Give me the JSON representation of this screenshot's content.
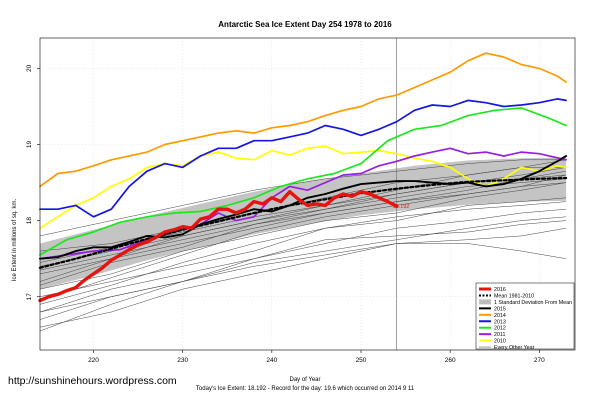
{
  "chart_data": {
    "type": "line",
    "title": "Antarctic Sea Ice Extent Day 254 1978 to 2016",
    "xlabel": "Day of Year",
    "ylabel": "Ice Extent in millions of sq. km.",
    "footer": "Today's Ice Extent: 18.192  - Record for the day: 19.6 which occurred on 2014 9 11",
    "watermark": "http://sunshinehours.wordpress.com",
    "xlim": [
      214,
      274
    ],
    "ylim": [
      16.3,
      20.4
    ],
    "xticks": [
      220,
      230,
      240,
      250,
      260,
      270
    ],
    "yticks": [
      17,
      18,
      19,
      20
    ],
    "current_day": 254,
    "grid": true,
    "legend_position": "bottom-right",
    "annotation": {
      "text": "18.192",
      "x": 254,
      "y": 18.192
    },
    "legend": [
      {
        "name": "2016",
        "color": "#e8130f"
      },
      {
        "name": "Mean 1981-2010",
        "color": "#000000"
      },
      {
        "name": "1 Standard Deviation From Mean",
        "color": "#bdbdbd"
      },
      {
        "name": "2015",
        "color": "#000000"
      },
      {
        "name": "2014",
        "color": "#ff9a00"
      },
      {
        "name": "2013",
        "color": "#1515e6"
      },
      {
        "name": "2012",
        "color": "#1ee61e"
      },
      {
        "name": "2011",
        "color": "#9a1ee0"
      },
      {
        "name": "2010",
        "color": "#ffff00"
      },
      {
        "name": "Every Other Year",
        "color": "#555555"
      }
    ],
    "mean_band": {
      "x": [
        214,
        220,
        226,
        232,
        238,
        244,
        250,
        256,
        262,
        268,
        273
      ],
      "lower": [
        17.1,
        17.28,
        17.48,
        17.65,
        17.82,
        17.95,
        18.07,
        18.15,
        18.21,
        18.25,
        18.26
      ],
      "upper": [
        17.7,
        17.88,
        18.06,
        18.22,
        18.38,
        18.52,
        18.62,
        18.72,
        18.79,
        18.82,
        18.83
      ]
    },
    "series": [
      {
        "name": "Mean 1981-2010",
        "style": "dashed",
        "x": [
          214,
          218,
          222,
          226,
          230,
          234,
          238,
          242,
          246,
          250,
          254,
          258,
          262,
          266,
          270,
          273
        ],
        "values": [
          17.38,
          17.5,
          17.63,
          17.76,
          17.88,
          17.99,
          18.1,
          18.2,
          18.28,
          18.36,
          18.42,
          18.47,
          18.51,
          18.53,
          18.55,
          18.56
        ]
      },
      {
        "name": "2010",
        "x": [
          214,
          216,
          218,
          220,
          222,
          224,
          226,
          228,
          230,
          232,
          234,
          236,
          238,
          240,
          242,
          244,
          246,
          248,
          250,
          252,
          254,
          256,
          258,
          260,
          262,
          264,
          266,
          268,
          270,
          272,
          273
        ],
        "values": [
          17.9,
          18.05,
          18.2,
          18.3,
          18.45,
          18.55,
          18.7,
          18.75,
          18.72,
          18.85,
          18.9,
          18.82,
          18.8,
          18.92,
          18.86,
          18.95,
          18.98,
          18.88,
          18.9,
          18.92,
          18.88,
          18.82,
          18.78,
          18.7,
          18.55,
          18.45,
          18.55,
          18.7,
          18.65,
          18.72,
          18.7
        ]
      },
      {
        "name": "2011",
        "x": [
          214,
          217,
          220,
          223,
          226,
          229,
          232,
          234,
          236,
          238,
          240,
          242,
          244,
          246,
          248,
          250,
          252,
          254,
          256,
          258,
          260,
          262,
          264,
          266,
          268,
          270,
          273
        ],
        "values": [
          17.5,
          17.55,
          17.6,
          17.62,
          17.75,
          17.85,
          17.95,
          18.1,
          18.0,
          18.05,
          18.3,
          18.45,
          18.4,
          18.5,
          18.6,
          18.62,
          18.72,
          18.78,
          18.85,
          18.9,
          18.95,
          18.88,
          18.9,
          18.85,
          18.9,
          18.88,
          18.8
        ]
      },
      {
        "name": "2012",
        "x": [
          214,
          217,
          220,
          223,
          226,
          229,
          232,
          235,
          238,
          241,
          244,
          247,
          250,
          253,
          256,
          259,
          262,
          265,
          268,
          271,
          273
        ],
        "values": [
          17.55,
          17.75,
          17.85,
          17.98,
          18.05,
          18.1,
          18.12,
          18.2,
          18.3,
          18.45,
          18.55,
          18.62,
          18.75,
          19.05,
          19.2,
          19.25,
          19.38,
          19.45,
          19.48,
          19.35,
          19.25
        ]
      },
      {
        "name": "2013",
        "x": [
          214,
          216,
          218,
          220,
          222,
          224,
          226,
          228,
          230,
          232,
          234,
          236,
          238,
          240,
          242,
          244,
          246,
          248,
          250,
          252,
          254,
          256,
          258,
          260,
          262,
          264,
          266,
          268,
          270,
          272,
          273
        ],
        "values": [
          18.15,
          18.15,
          18.2,
          18.05,
          18.15,
          18.45,
          18.65,
          18.75,
          18.7,
          18.85,
          18.95,
          18.95,
          19.05,
          19.05,
          19.1,
          19.15,
          19.25,
          19.2,
          19.12,
          19.2,
          19.3,
          19.45,
          19.52,
          19.5,
          19.58,
          19.55,
          19.5,
          19.52,
          19.55,
          19.6,
          19.58
        ]
      },
      {
        "name": "2014",
        "x": [
          214,
          216,
          218,
          220,
          222,
          224,
          226,
          228,
          230,
          232,
          234,
          236,
          238,
          240,
          242,
          244,
          246,
          248,
          250,
          252,
          254,
          256,
          258,
          260,
          262,
          264,
          266,
          268,
          270,
          272,
          273
        ],
        "values": [
          18.45,
          18.62,
          18.65,
          18.72,
          18.8,
          18.85,
          18.9,
          19.0,
          19.05,
          19.1,
          19.15,
          19.18,
          19.15,
          19.22,
          19.25,
          19.3,
          19.38,
          19.45,
          19.5,
          19.6,
          19.65,
          19.75,
          19.85,
          19.95,
          20.1,
          20.2,
          20.15,
          20.05,
          20.0,
          19.9,
          19.82
        ]
      },
      {
        "name": "2015",
        "x": [
          214,
          216,
          218,
          220,
          222,
          224,
          226,
          228,
          230,
          232,
          234,
          236,
          238,
          240,
          242,
          244,
          246,
          248,
          250,
          252,
          254,
          256,
          258,
          260,
          262,
          264,
          266,
          268,
          270,
          272,
          273
        ],
        "values": [
          17.5,
          17.52,
          17.6,
          17.65,
          17.65,
          17.72,
          17.8,
          17.78,
          17.82,
          17.95,
          18.02,
          18.08,
          18.15,
          18.12,
          18.2,
          18.3,
          18.35,
          18.42,
          18.48,
          18.5,
          18.52,
          18.52,
          18.5,
          18.48,
          18.5,
          18.45,
          18.48,
          18.55,
          18.65,
          18.78,
          18.85
        ]
      },
      {
        "name": "2016",
        "label": "18.192",
        "x": [
          214,
          215,
          216,
          217,
          218,
          219,
          220,
          221,
          222,
          223,
          224,
          225,
          226,
          227,
          228,
          229,
          230,
          231,
          232,
          233,
          234,
          235,
          236,
          237,
          238,
          239,
          240,
          241,
          242,
          243,
          244,
          245,
          246,
          247,
          248,
          249,
          250,
          251,
          252,
          253,
          254
        ],
        "values": [
          16.95,
          17.0,
          17.03,
          17.08,
          17.12,
          17.22,
          17.3,
          17.38,
          17.48,
          17.55,
          17.62,
          17.68,
          17.72,
          17.78,
          17.85,
          17.88,
          17.92,
          17.9,
          18.02,
          18.05,
          18.15,
          18.15,
          18.1,
          18.15,
          18.25,
          18.22,
          18.3,
          18.25,
          18.38,
          18.28,
          18.2,
          18.22,
          18.2,
          18.3,
          18.35,
          18.32,
          18.38,
          18.35,
          18.3,
          18.25,
          18.19
        ]
      }
    ],
    "other_years": [
      {
        "x": [
          214,
          222,
          230,
          238,
          246,
          254,
          262,
          268,
          273
        ],
        "values": [
          17.2,
          17.5,
          17.8,
          18.0,
          18.2,
          18.4,
          18.6,
          18.7,
          18.8
        ]
      },
      {
        "x": [
          214,
          222,
          230,
          238,
          246,
          254,
          262,
          268,
          273
        ],
        "values": [
          17.0,
          17.2,
          17.4,
          17.6,
          17.9,
          18.0,
          18.2,
          18.25,
          18.3
        ]
      },
      {
        "x": [
          214,
          222,
          230,
          238,
          246,
          254,
          262,
          268,
          273
        ],
        "values": [
          16.8,
          17.1,
          17.3,
          17.5,
          17.7,
          17.9,
          18.0,
          18.1,
          18.15
        ]
      },
      {
        "x": [
          214,
          222,
          230,
          238,
          246,
          254,
          262,
          268,
          273
        ],
        "values": [
          16.55,
          16.9,
          17.2,
          17.5,
          17.75,
          17.8,
          17.85,
          17.95,
          18.0
        ]
      },
      {
        "x": [
          214,
          222,
          230,
          238,
          246,
          254,
          262,
          268,
          273
        ],
        "values": [
          17.8,
          18.0,
          18.2,
          18.4,
          18.55,
          18.65,
          18.75,
          18.8,
          18.8
        ]
      },
      {
        "x": [
          214,
          222,
          230,
          238,
          246,
          254,
          262,
          268,
          273
        ],
        "values": [
          17.6,
          17.7,
          17.9,
          18.1,
          18.3,
          18.5,
          18.6,
          18.7,
          18.7
        ]
      },
      {
        "x": [
          214,
          222,
          230,
          238,
          246,
          254,
          262,
          268,
          273
        ],
        "values": [
          17.4,
          17.6,
          17.8,
          18.0,
          18.15,
          18.3,
          18.45,
          18.5,
          18.55
        ]
      },
      {
        "x": [
          214,
          222,
          230,
          238,
          246,
          254,
          262,
          268,
          273
        ],
        "values": [
          16.8,
          17.0,
          17.2,
          17.4,
          17.55,
          17.7,
          17.75,
          17.8,
          17.9
        ]
      },
      {
        "x": [
          214,
          222,
          230,
          238,
          246,
          254,
          262,
          268,
          273
        ],
        "values": [
          17.1,
          17.3,
          17.6,
          17.8,
          18.0,
          18.1,
          18.3,
          18.4,
          18.5
        ]
      },
      {
        "x": [
          214,
          222,
          230,
          238,
          246,
          254,
          262,
          268,
          273
        ],
        "values": [
          16.95,
          17.25,
          17.55,
          17.85,
          18.05,
          18.2,
          18.35,
          18.45,
          18.6
        ]
      },
      {
        "x": [
          214,
          222,
          230,
          238,
          246,
          254,
          262,
          268,
          273
        ],
        "values": [
          17.3,
          17.5,
          17.7,
          17.9,
          18.1,
          18.25,
          18.4,
          18.55,
          18.65
        ]
      },
      {
        "x": [
          214,
          222,
          230,
          238,
          246,
          254,
          262,
          268,
          273
        ],
        "values": [
          16.7,
          17.0,
          17.2,
          17.45,
          17.6,
          17.75,
          17.9,
          18.0,
          18.05
        ]
      },
      {
        "x": [
          214,
          222,
          230,
          238,
          246,
          254,
          262,
          268,
          273
        ],
        "values": [
          17.45,
          17.65,
          17.85,
          18.05,
          18.2,
          18.35,
          18.5,
          18.6,
          18.7
        ]
      },
      {
        "x": [
          214,
          222,
          230,
          238,
          246,
          254,
          262,
          268,
          273
        ],
        "values": [
          16.6,
          16.8,
          17.1,
          17.3,
          17.5,
          17.7,
          17.7,
          17.6,
          17.5
        ]
      },
      {
        "x": [
          214,
          222,
          230,
          238,
          246,
          254,
          262,
          268,
          273
        ],
        "values": [
          17.15,
          17.45,
          17.65,
          17.95,
          18.15,
          18.35,
          18.5,
          18.55,
          18.6
        ]
      },
      {
        "x": [
          214,
          222,
          230,
          238,
          246,
          254,
          262,
          268,
          273
        ],
        "values": [
          16.9,
          17.15,
          17.45,
          17.7,
          17.9,
          18.05,
          18.15,
          18.2,
          18.25
        ]
      },
      {
        "x": [
          214,
          222,
          230,
          238,
          246,
          254,
          262,
          268,
          273
        ],
        "values": [
          17.35,
          17.55,
          17.75,
          17.95,
          18.1,
          18.25,
          18.35,
          18.45,
          18.5
        ]
      }
    ]
  }
}
